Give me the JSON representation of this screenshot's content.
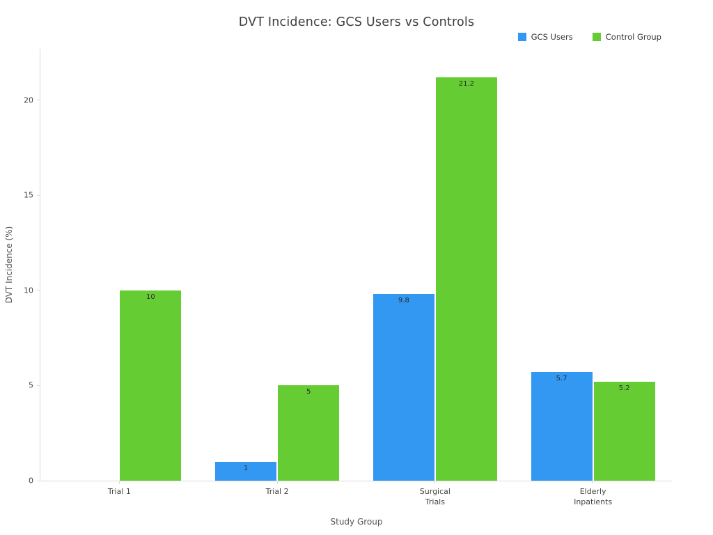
{
  "chart_data": {
    "type": "bar",
    "title": "DVT Incidence: GCS Users vs Controls",
    "categories": [
      "Trial 1",
      "Trial 2",
      "Surgical\nTrials",
      "Elderly\nInpatients"
    ],
    "series": [
      {
        "name": "GCS Users",
        "color": "#3398f2",
        "values": [
          0,
          1,
          9.8,
          5.7
        ]
      },
      {
        "name": "Control Group",
        "color": "#66cc33",
        "values": [
          10,
          5,
          21.2,
          5.2
        ]
      }
    ],
    "bar_value_labels_shown": [
      "10",
      "1",
      "5",
      "9.8",
      "21.2",
      "5.7",
      "5.2"
    ],
    "xlabel": "Study Group",
    "ylabel": "DVT Incidence (%)",
    "yticks": [
      0,
      5,
      10,
      15,
      20
    ],
    "ylim": [
      0,
      22.7
    ],
    "grid": false,
    "legend_position": "top-right",
    "colors": {
      "background": "#ffffff",
      "axis_line": "#d9d9d9",
      "tick_text": "#444444",
      "title_text": "#3d3d3d",
      "bar_label_text": "#2a2a2a"
    }
  }
}
